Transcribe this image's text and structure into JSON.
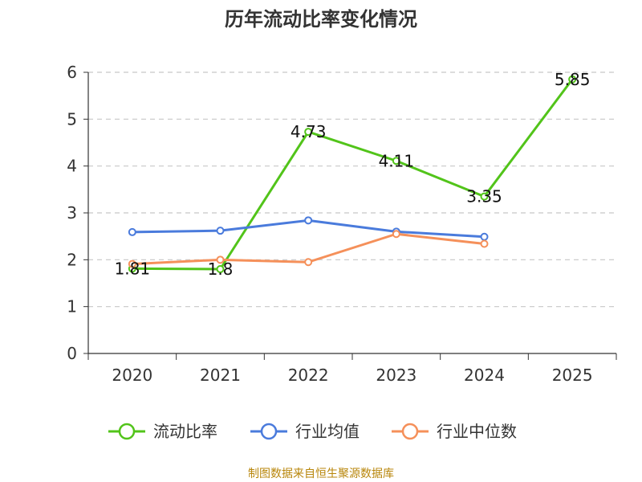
{
  "chart_data": {
    "type": "line",
    "title": "历年流动比率变化情况",
    "categories": [
      "2020",
      "2021",
      "2022",
      "2023",
      "2024",
      "2025"
    ],
    "ylim": [
      0,
      6
    ],
    "yticks": [
      0,
      1,
      2,
      3,
      4,
      5,
      6
    ],
    "grid": true,
    "legend_position": "bottom",
    "series": [
      {
        "name": "流动比率",
        "color": "#52c41a",
        "values": [
          1.81,
          1.8,
          4.73,
          4.11,
          3.35,
          5.85
        ],
        "labels": [
          "1.81",
          "1.8",
          "4.73",
          "4.11",
          "3.35",
          "5.85"
        ]
      },
      {
        "name": "行业均值",
        "color": "#4a7bdc",
        "values": [
          2.59,
          2.62,
          2.84,
          2.6,
          2.49,
          null
        ]
      },
      {
        "name": "行业中位数",
        "color": "#f5905a",
        "values": [
          1.91,
          2.0,
          1.95,
          2.55,
          2.34,
          null
        ]
      }
    ]
  },
  "source": "制图数据来自恒生聚源数据库"
}
